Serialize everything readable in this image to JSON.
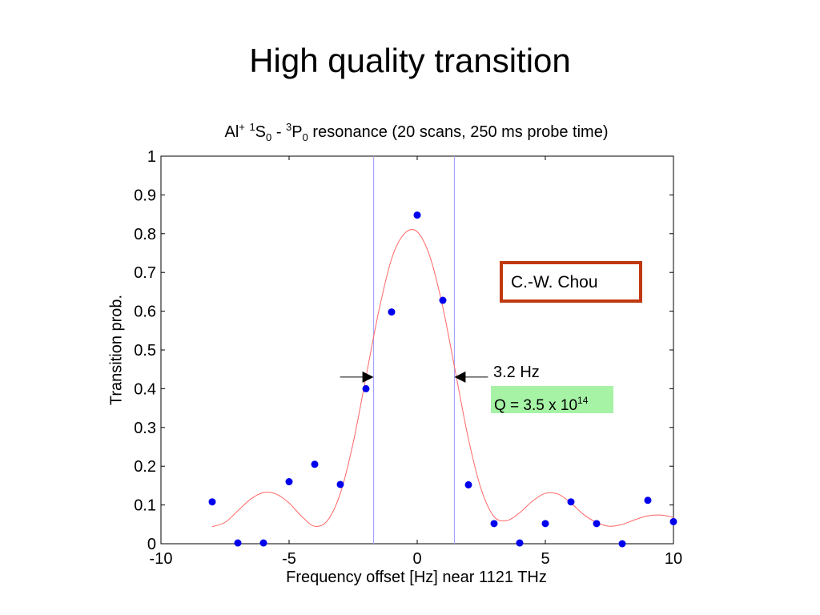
{
  "slide": {
    "title": "High quality transition"
  },
  "chart_data": {
    "type": "scatter",
    "title_parts": {
      "prefix": "Al",
      "ion_sup": "+",
      "state1_sup": "1",
      "state1_base": "S",
      "state1_sub": "0",
      "dash": "-",
      "state2_sup": "3",
      "state2_base": "P",
      "state2_sub": "0",
      "suffix": "resonance (20 scans, 250 ms probe time)"
    },
    "xlabel": "Frequency offset [Hz] near 1121 THz",
    "ylabel": "Transition prob.",
    "xlim": [
      -10,
      10
    ],
    "ylim": [
      0,
      1
    ],
    "xticks": [
      -10,
      -5,
      0,
      5,
      10
    ],
    "yticks": [
      0,
      0.1,
      0.2,
      0.3,
      0.4,
      0.5,
      0.6,
      0.7,
      0.8,
      0.9,
      1
    ],
    "ytick_labels": [
      "0",
      "0.1",
      "0.2",
      "0.3",
      "0.4",
      "0.5",
      "0.6",
      "0.7",
      "0.8",
      "0.9",
      "1"
    ],
    "xtick_labels": [
      "-10",
      "-5",
      "0",
      "5",
      "10"
    ],
    "grid": false,
    "series": [
      {
        "type": "scatter",
        "color": "#0000ee",
        "x": [
          -8,
          -7,
          -6,
          -5,
          -4,
          -3,
          -2,
          -1,
          0,
          1,
          2,
          3,
          4,
          5,
          6,
          7,
          8,
          9,
          10
        ],
        "y": [
          0.108,
          0.002,
          0.002,
          0.16,
          0.205,
          0.153,
          0.4,
          0.598,
          0.848,
          0.628,
          0.152,
          0.052,
          0.002,
          0.052,
          0.108,
          0.052,
          0.0,
          0.112,
          0.057
        ]
      },
      {
        "type": "line",
        "color": "#ff6666",
        "description_free": true,
        "x": [
          -8,
          -7.5,
          -7,
          -6.5,
          -6,
          -5.5,
          -5,
          -4.5,
          -4,
          -3.5,
          -3,
          -2.5,
          -2,
          -1.5,
          -1,
          -0.5,
          0,
          0.5,
          1,
          1.5,
          2,
          2.5,
          3,
          3.5,
          4,
          4.5,
          5,
          5.5,
          6,
          6.5,
          7,
          7.5,
          8,
          8.5,
          9,
          9.5,
          10
        ],
        "y": [
          0.044,
          0.055,
          0.085,
          0.115,
          0.132,
          0.128,
          0.105,
          0.07,
          0.045,
          0.06,
          0.13,
          0.26,
          0.43,
          0.6,
          0.735,
          0.8,
          0.805,
          0.74,
          0.61,
          0.44,
          0.27,
          0.14,
          0.07,
          0.06,
          0.08,
          0.11,
          0.13,
          0.128,
          0.105,
          0.075,
          0.055,
          0.045,
          0.05,
          0.062,
          0.072,
          0.074,
          0.068
        ]
      }
    ],
    "vlines": {
      "color": "#9999ff",
      "x": [
        -1.7,
        1.45
      ]
    },
    "annotations": {
      "width_label": "3.2 Hz",
      "width_level": 0.43,
      "q_prefix": "Q = 3.5 x 10",
      "q_exp": "14",
      "q_box_color": "#a6f3a6",
      "author": "C.-W. Chou",
      "author_box_color": "#c0380f"
    }
  }
}
